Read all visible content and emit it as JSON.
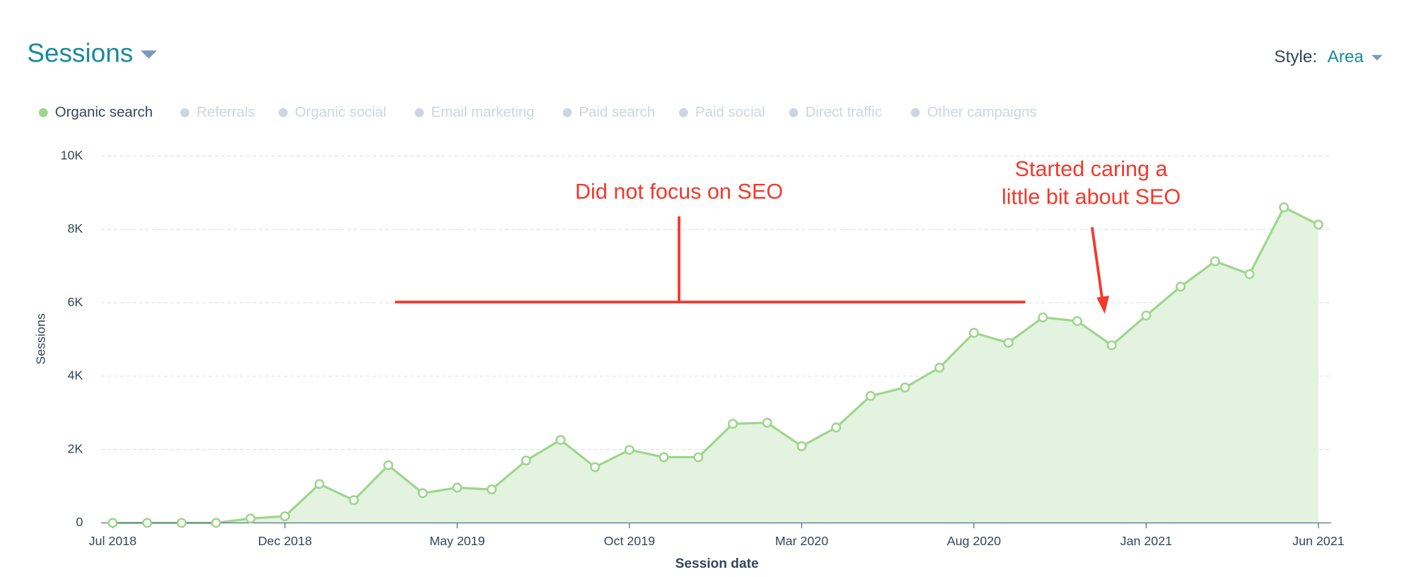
{
  "header": {
    "title": "Sessions",
    "style_label": "Style:",
    "style_value": "Area"
  },
  "chart_data": {
    "type": "area",
    "xlabel": "Session date",
    "ylabel": "Sessions",
    "categories": [
      "Jul 2018",
      null,
      null,
      null,
      null,
      "Dec 2018",
      null,
      null,
      null,
      null,
      "May 2019",
      null,
      null,
      null,
      null,
      "Oct 2019",
      null,
      null,
      null,
      null,
      "Mar 2020",
      null,
      null,
      null,
      null,
      "Aug 2020",
      null,
      null,
      null,
      null,
      "Jan 2021",
      null,
      null,
      null,
      null,
      "Jun 2021"
    ],
    "series": [
      {
        "name": "Organic search",
        "color": "#9dd68c",
        "values": [
          0,
          0,
          0,
          0,
          120,
          180,
          1060,
          620,
          1570,
          810,
          960,
          910,
          1700,
          2260,
          1520,
          1990,
          1790,
          1790,
          2700,
          2730,
          2090,
          2600,
          3460,
          3690,
          4230,
          5180,
          4910,
          5600,
          5500,
          4840,
          5650,
          6440,
          7130,
          6780,
          8600,
          8130
        ]
      }
    ],
    "inactive_legend": [
      "Referrals",
      "Organic social",
      "Email marketing",
      "Paid search",
      "Paid social",
      "Direct traffic",
      "Other campaigns"
    ],
    "ylim": [
      0,
      10000
    ],
    "yticks": [
      0,
      {
        "value": 2000,
        "label": "2K"
      },
      {
        "value": 4000,
        "label": "4K"
      },
      {
        "value": 6000,
        "label": "6K"
      },
      {
        "value": 8000,
        "label": "8K"
      },
      {
        "value": 10000,
        "label": "10K"
      }
    ],
    "grid": true,
    "annotations": [
      {
        "text": "Did not focus on SEO"
      },
      {
        "lines": [
          "Started caring a",
          "little bit about SEO"
        ]
      }
    ]
  }
}
